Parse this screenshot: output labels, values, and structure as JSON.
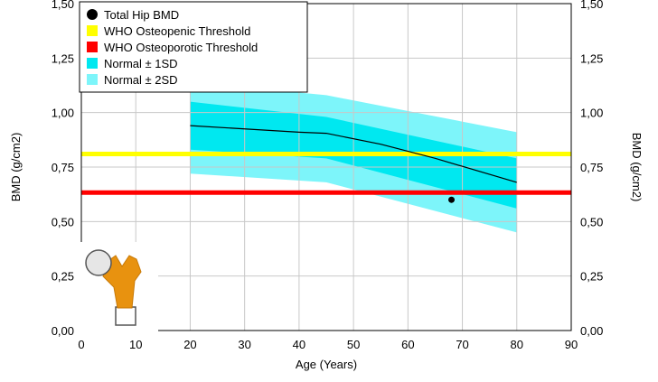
{
  "chart_data": {
    "type": "line",
    "xlabel": "Age (Years)",
    "ylabel": "BMD (g/cm2)",
    "ylabel_right": "BMD (g/cm2)",
    "xlim": [
      0,
      90
    ],
    "ylim": [
      0,
      1.5
    ],
    "x_ticks": [
      0,
      10,
      20,
      30,
      40,
      50,
      60,
      70,
      80,
      90
    ],
    "x_tick_labels": [
      "0",
      "10",
      "20",
      "30",
      "40",
      "50",
      "60",
      "70",
      "80",
      "90"
    ],
    "y_ticks": [
      0,
      0.25,
      0.5,
      0.75,
      1.0,
      1.25,
      1.5
    ],
    "y_tick_labels": [
      "0,00",
      "0,25",
      "0,50",
      "0,75",
      "1,00",
      "1,25",
      "1,50"
    ],
    "grid": true,
    "legend": {
      "placement": "top-left",
      "entries": [
        {
          "label": "Total Hip BMD",
          "color": "#000000",
          "marker": "circle"
        },
        {
          "label": "WHO Osteopenic Threshold",
          "color": "#ffff00",
          "marker": "square"
        },
        {
          "label": "WHO Osteoporotic Threshold",
          "color": "#ff0000",
          "marker": "square"
        },
        {
          "label": "Normal ± 1SD",
          "color": "#00e8f0",
          "marker": "square"
        },
        {
          "label": "Normal ± 2SD",
          "color": "#7df5fa",
          "marker": "square"
        }
      ]
    },
    "bands": [
      {
        "name": "Normal ± 2SD",
        "color": "#7df5fa",
        "x": [
          20,
          45,
          80
        ],
        "upper": [
          1.14,
          1.08,
          0.91
        ],
        "lower": [
          0.72,
          0.68,
          0.45
        ]
      },
      {
        "name": "Normal ± 1SD",
        "color": "#00e8f0",
        "x": [
          20,
          45,
          80
        ],
        "upper": [
          1.05,
          0.98,
          0.79
        ],
        "lower": [
          0.83,
          0.79,
          0.56
        ]
      }
    ],
    "reference_curve": {
      "color": "#000000",
      "x": [
        20,
        30,
        40,
        45,
        55,
        65,
        80
      ],
      "y": [
        0.94,
        0.925,
        0.91,
        0.905,
        0.855,
        0.79,
        0.68
      ]
    },
    "thresholds": [
      {
        "name": "WHO Osteopenic Threshold",
        "y": 0.81,
        "color": "#ffff00"
      },
      {
        "name": "WHO Osteoporotic Threshold",
        "y": 0.633,
        "color": "#ff0000"
      }
    ],
    "points": [
      {
        "name": "Total Hip BMD",
        "x": 68,
        "y": 0.6,
        "color": "#000000"
      }
    ],
    "icon": "hip-bone-icon"
  }
}
